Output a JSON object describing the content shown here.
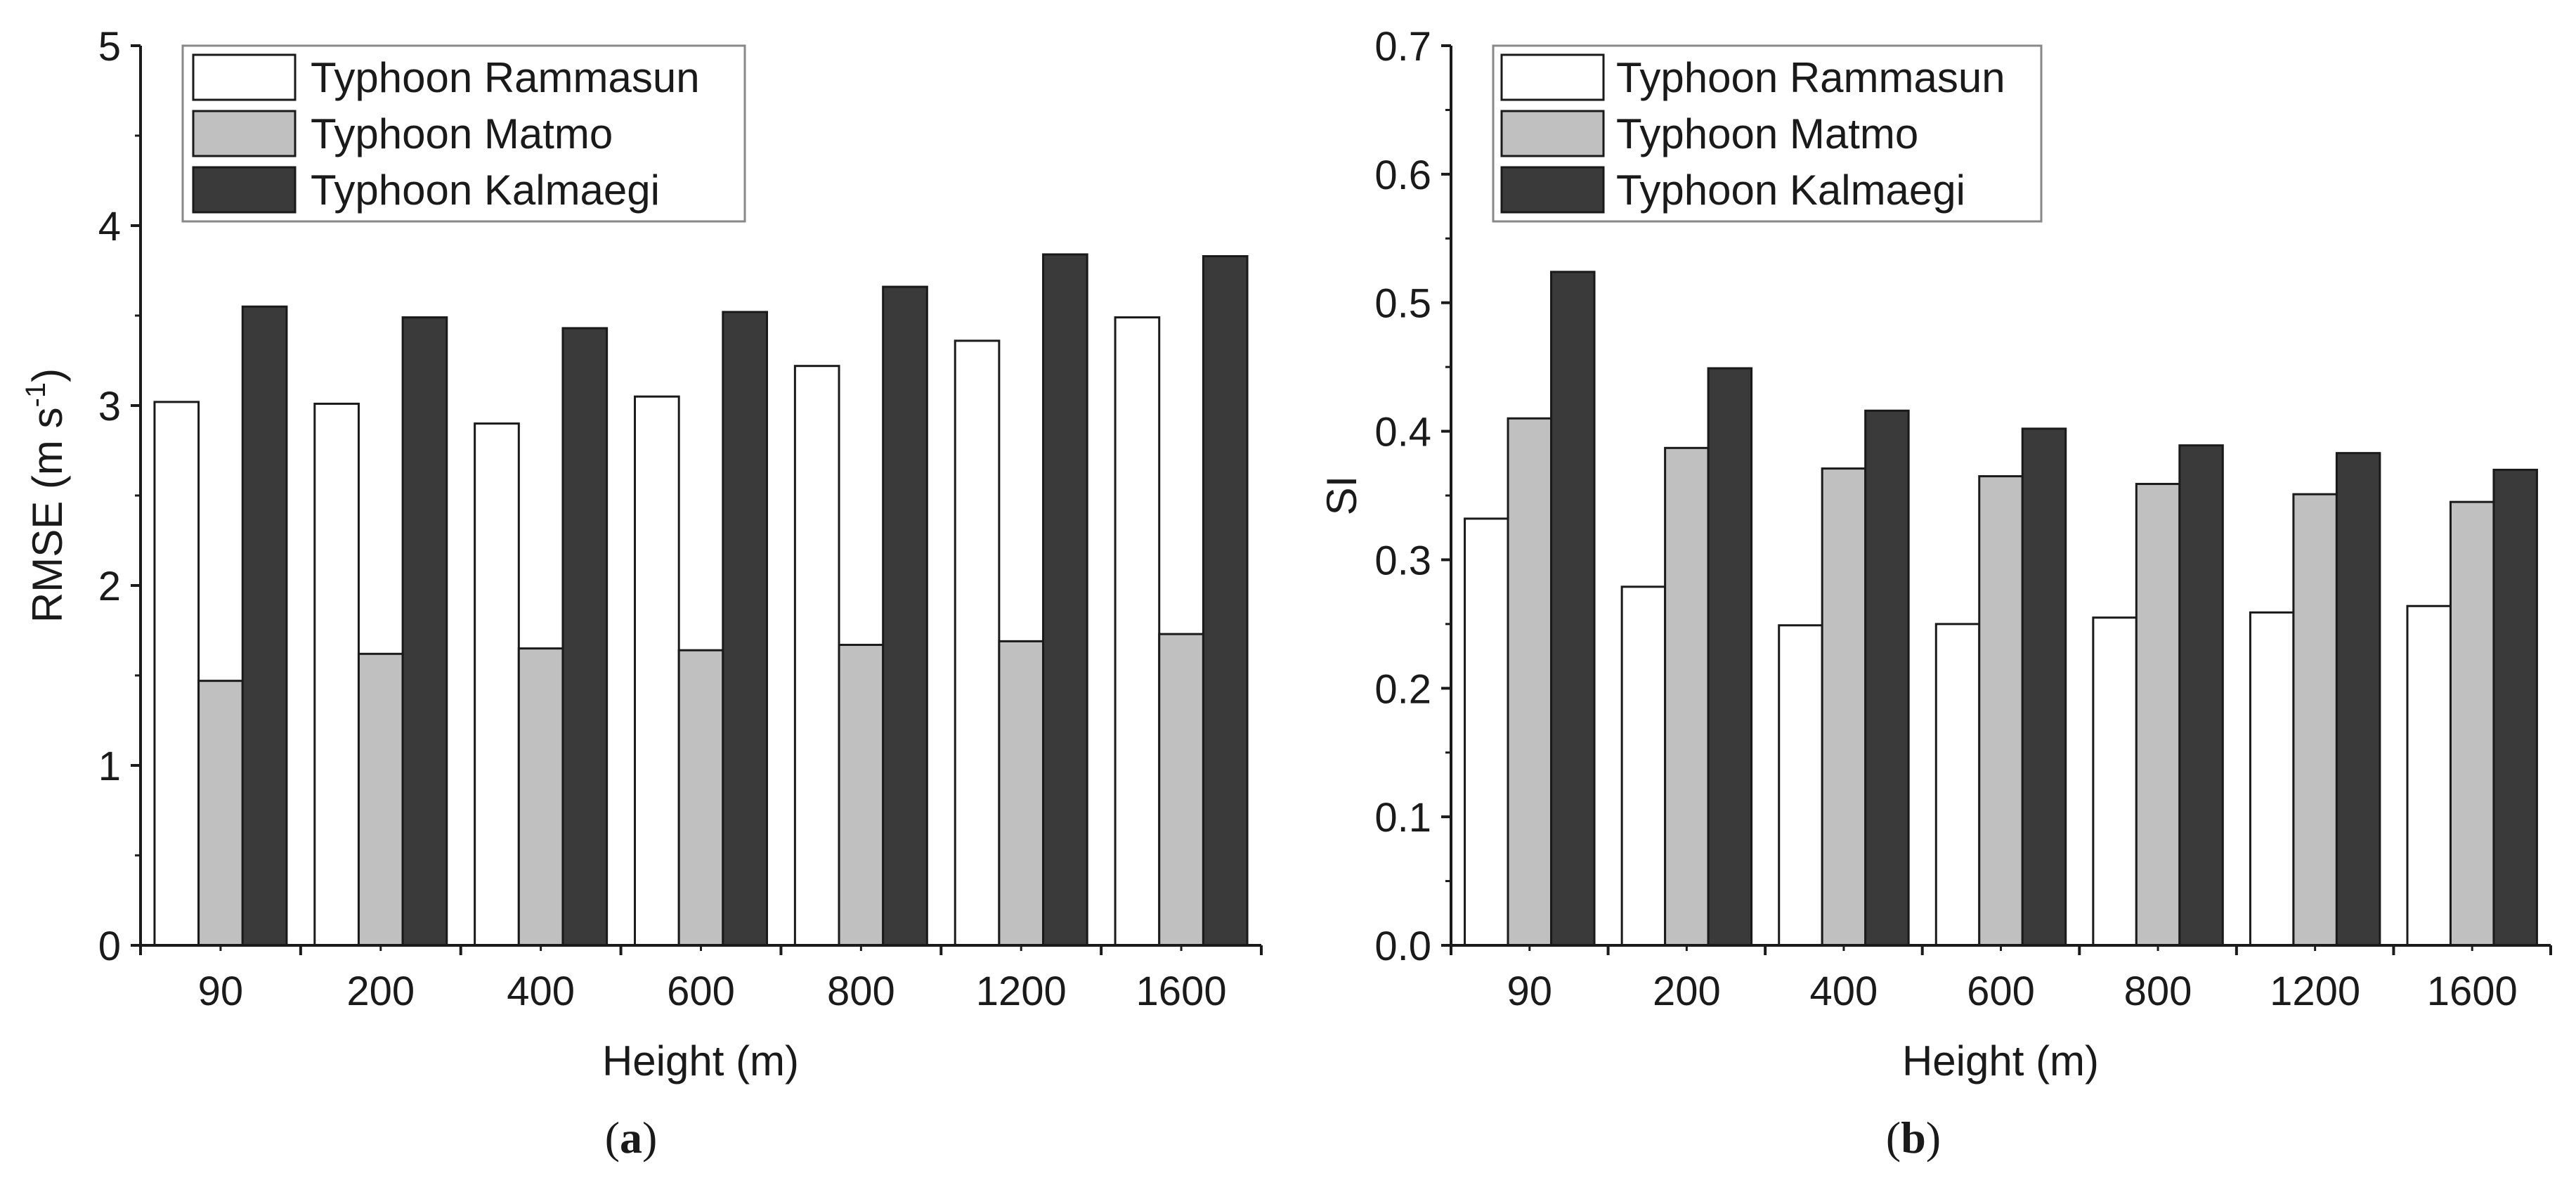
{
  "colors": {
    "rammasun": "#ffffff",
    "matmo": "#c0c0c0",
    "kalmaegi": "#3a3a3a",
    "axis": "#1a1a1a"
  },
  "chart_data": [
    {
      "type": "bar",
      "caption_letter": "a",
      "title": "",
      "xlabel": "Height (m)",
      "ylabel_main": "RMSE (m s",
      "ylabel_sup": "-1",
      "ylabel_close": ")",
      "ylim": [
        0,
        5
      ],
      "yticks": [
        "0",
        "1",
        "2",
        "3",
        "4",
        "5"
      ],
      "tick_values": [
        0,
        1,
        2,
        3,
        4,
        5
      ],
      "legend_position": "top-left",
      "categories": [
        "90",
        "200",
        "400",
        "600",
        "800",
        "1200",
        "1600"
      ],
      "series": [
        {
          "name": "Typhoon Rammasun",
          "color_key": "rammasun",
          "values": [
            3.02,
            3.01,
            2.9,
            3.05,
            3.22,
            3.36,
            3.49
          ]
        },
        {
          "name": "Typhoon Matmo",
          "color_key": "matmo",
          "values": [
            1.47,
            1.62,
            1.65,
            1.64,
            1.67,
            1.69,
            1.73
          ]
        },
        {
          "name": "Typhoon Kalmaegi",
          "color_key": "kalmaegi",
          "values": [
            3.55,
            3.49,
            3.43,
            3.52,
            3.66,
            3.84,
            3.83
          ]
        }
      ]
    },
    {
      "type": "bar",
      "caption_letter": "b",
      "title": "",
      "xlabel": "Height (m)",
      "ylabel_main": "SI",
      "ylabel_sup": "",
      "ylabel_close": "",
      "ylim": [
        0,
        0.7
      ],
      "yticks": [
        "0.0",
        "0.1",
        "0.2",
        "0.3",
        "0.4",
        "0.5",
        "0.6",
        "0.7"
      ],
      "tick_values": [
        0,
        0.1,
        0.2,
        0.3,
        0.4,
        0.5,
        0.6,
        0.7
      ],
      "legend_position": "top-left",
      "categories": [
        "90",
        "200",
        "400",
        "600",
        "800",
        "1200",
        "1600"
      ],
      "series": [
        {
          "name": "Typhoon Rammasun",
          "color_key": "rammasun",
          "values": [
            0.332,
            0.279,
            0.249,
            0.25,
            0.255,
            0.259,
            0.264
          ]
        },
        {
          "name": "Typhoon Matmo",
          "color_key": "matmo",
          "values": [
            0.41,
            0.387,
            0.371,
            0.365,
            0.359,
            0.351,
            0.345
          ]
        },
        {
          "name": "Typhoon Kalmaegi",
          "color_key": "kalmaegi",
          "values": [
            0.524,
            0.449,
            0.416,
            0.402,
            0.389,
            0.383,
            0.37
          ]
        }
      ]
    }
  ]
}
